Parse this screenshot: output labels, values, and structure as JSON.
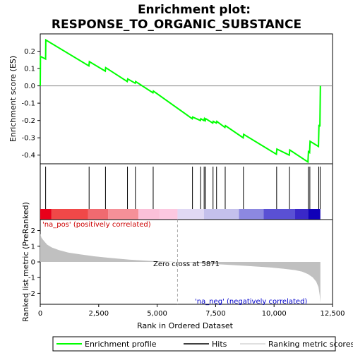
{
  "chart_data": {
    "type": "line",
    "title_line1": "Enrichment plot:",
    "title_line2": "RESPONSE_TO_ORGANIC_SUBSTANCE",
    "top_panel": {
      "ylabel": "Enrichment score (ES)",
      "ylim": [
        -0.45,
        0.3
      ],
      "yticks": [
        "0.2",
        "0.1",
        "0.0",
        "-0.1",
        "-0.2",
        "-0.3",
        "-0.4"
      ],
      "ytick_values": [
        0.2,
        0.1,
        0.0,
        -0.1,
        -0.2,
        -0.3,
        -0.4
      ],
      "series": [
        {
          "name": "Enrichment profile",
          "color": "#00ff00",
          "x": [
            0,
            10,
            230,
            240,
            2080,
            2100,
            2780,
            2800,
            3720,
            3740,
            4060,
            4080,
            4820,
            4840,
            6500,
            6520,
            6850,
            6870,
            7000,
            7020,
            7060,
            7080,
            7380,
            7400,
            7530,
            7550,
            7900,
            7920,
            8680,
            8700,
            10100,
            10120,
            10650,
            10670,
            11450,
            11470,
            11520,
            11540,
            11900,
            11920,
            11960,
            11980
          ],
          "y": [
            0.0,
            0.17,
            0.155,
            0.265,
            0.115,
            0.14,
            0.085,
            0.105,
            0.025,
            0.04,
            0.015,
            0.025,
            -0.04,
            -0.03,
            -0.19,
            -0.18,
            -0.2,
            -0.19,
            -0.2,
            -0.19,
            -0.2,
            -0.19,
            -0.215,
            -0.205,
            -0.215,
            -0.205,
            -0.24,
            -0.23,
            -0.3,
            -0.28,
            -0.395,
            -0.365,
            -0.4,
            -0.37,
            -0.44,
            -0.38,
            -0.385,
            -0.32,
            -0.35,
            -0.225,
            -0.235,
            0.0
          ]
        }
      ]
    },
    "hits_panel": {
      "hit_positions": [
        230,
        2090,
        2790,
        3730,
        4070,
        4830,
        6510,
        6860,
        7010,
        7070,
        7390,
        7540,
        7910,
        8690,
        10110,
        10660,
        11460,
        11530,
        11910,
        11970
      ],
      "band_colors": [
        {
          "from": 0,
          "to": 480,
          "color": "#e8001a"
        },
        {
          "from": 480,
          "to": 2050,
          "color": "#f04848"
        },
        {
          "from": 2050,
          "to": 2900,
          "color": "#f06a70"
        },
        {
          "from": 2900,
          "to": 4200,
          "color": "#f59098"
        },
        {
          "from": 4200,
          "to": 5100,
          "color": "#fbc0d8"
        },
        {
          "from": 5100,
          "to": 5871,
          "color": "#fcc8e0"
        },
        {
          "from": 5871,
          "to": 7000,
          "color": "#e0d8f4"
        },
        {
          "from": 7000,
          "to": 8500,
          "color": "#c4c0ec"
        },
        {
          "from": 8500,
          "to": 9550,
          "color": "#8c88e0"
        },
        {
          "from": 9550,
          "to": 10900,
          "color": "#5a50d4"
        },
        {
          "from": 10900,
          "to": 11450,
          "color": "#3a28c8"
        },
        {
          "from": 11450,
          "to": 11980,
          "color": "#1000b8"
        }
      ]
    },
    "bottom_panel": {
      "ylabel": "Ranked list metric (PreRanked)",
      "xlabel": "Rank in Ordered Dataset",
      "ylim": [
        -2.7,
        2.7
      ],
      "yticks": [
        "2",
        "1",
        "0",
        "-1",
        "-2"
      ],
      "ytick_values": [
        2,
        1,
        0,
        -1,
        -2
      ],
      "metric_curve": {
        "x": [
          0,
          50,
          150,
          300,
          500,
          800,
          1200,
          1700,
          2300,
          3000,
          3800,
          4600,
          5400,
          5871,
          6500,
          7300,
          8200,
          9000,
          9800,
          10400,
          10900,
          11200,
          11450,
          11650,
          11800,
          11900,
          11950,
          11980
        ],
        "y": [
          1.8,
          1.55,
          1.35,
          1.1,
          0.92,
          0.75,
          0.6,
          0.48,
          0.36,
          0.25,
          0.15,
          0.07,
          0.02,
          0.0,
          -0.05,
          -0.12,
          -0.2,
          -0.27,
          -0.35,
          -0.43,
          -0.52,
          -0.62,
          -0.78,
          -0.98,
          -1.25,
          -1.6,
          -2.1,
          -2.6
        ]
      },
      "pos_label": "'na_pos' (positively correlated)",
      "neg_label": "'na_neg' (negatively correlated)",
      "zero_cross_label": "Zero cross at 5871",
      "zero_cross": 5871
    },
    "xlim": [
      0,
      12500
    ],
    "xticks": [
      "0",
      "2,500",
      "5,000",
      "7,500",
      "10,000",
      "12,500"
    ],
    "xtick_values": [
      0,
      2500,
      5000,
      7500,
      10000,
      12500
    ],
    "legend": [
      {
        "label": "Enrichment profile",
        "color": "#00ff00"
      },
      {
        "label": "Hits",
        "color": "#000000"
      },
      {
        "label": "Ranking metric scores",
        "color": "#c0c0c0"
      }
    ],
    "colors": {
      "profile": "#00ff00",
      "metric_fill": "#c0c0c0",
      "pos_text": "#cc0000",
      "neg_text": "#0000cc"
    }
  }
}
